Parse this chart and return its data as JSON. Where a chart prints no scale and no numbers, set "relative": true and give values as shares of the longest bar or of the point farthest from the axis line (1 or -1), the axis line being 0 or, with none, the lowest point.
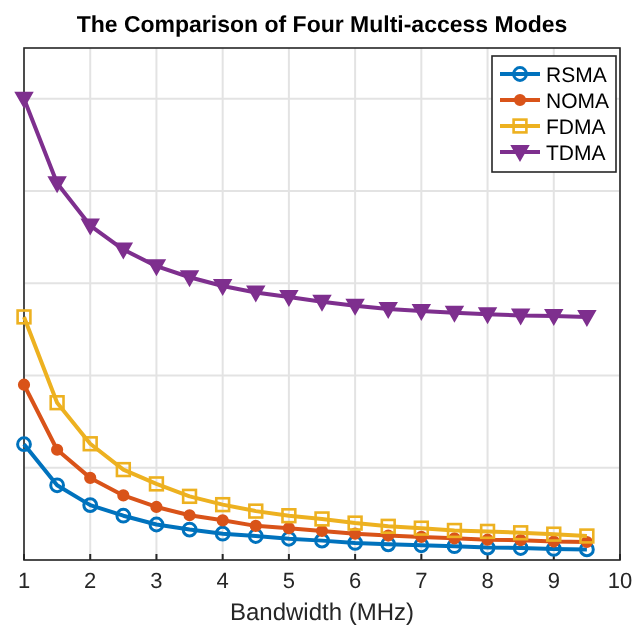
{
  "chart_data": {
    "type": "line",
    "title": "The Comparison of Four Multi-access Modes",
    "xlabel": "Bandwidth (MHz)",
    "relative": true,
    "xlim": [
      1,
      10
    ],
    "xticks": [
      1,
      2,
      3,
      4,
      5,
      6,
      7,
      8,
      9,
      10
    ],
    "grid": true,
    "legend": "top right",
    "x": [
      1,
      1.5,
      2,
      2.5,
      3,
      3.5,
      4,
      4.5,
      5,
      5.5,
      6,
      6.5,
      7,
      7.5,
      8,
      8.5,
      9,
      9.5
    ],
    "series": [
      {
        "name": "RSMA",
        "color": "#0072bd",
        "marker": "circle",
        "values": [
          0.251,
          0.162,
          0.119,
          0.096,
          0.077,
          0.066,
          0.057,
          0.052,
          0.046,
          0.042,
          0.037,
          0.034,
          0.032,
          0.03,
          0.027,
          0.026,
          0.024,
          0.023
        ]
      },
      {
        "name": "NOMA",
        "color": "#d95319",
        "marker": "circle",
        "values": [
          0.38,
          0.239,
          0.178,
          0.14,
          0.115,
          0.097,
          0.086,
          0.074,
          0.069,
          0.063,
          0.057,
          0.053,
          0.05,
          0.047,
          0.044,
          0.043,
          0.04,
          0.039
        ]
      },
      {
        "name": "FDMA",
        "color": "#edb120",
        "marker": "square",
        "values": [
          0.527,
          0.341,
          0.252,
          0.196,
          0.165,
          0.138,
          0.12,
          0.106,
          0.096,
          0.089,
          0.08,
          0.073,
          0.069,
          0.064,
          0.062,
          0.059,
          0.056,
          0.052
        ]
      },
      {
        "name": "TDMA",
        "color": "#7e2f8e",
        "marker": "triangle",
        "values": [
          1,
          0.817,
          0.725,
          0.673,
          0.637,
          0.613,
          0.594,
          0.58,
          0.57,
          0.56,
          0.551,
          0.544,
          0.54,
          0.536,
          0.533,
          0.53,
          0.529,
          0.527
        ]
      }
    ]
  }
}
